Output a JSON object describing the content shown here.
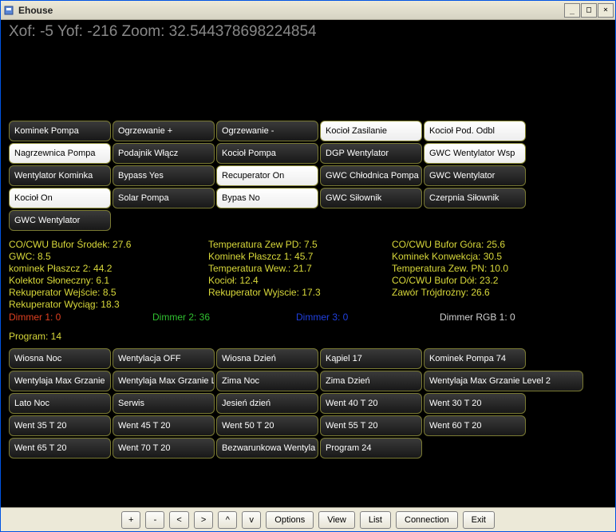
{
  "window": {
    "title": "Ehouse"
  },
  "coords": {
    "text": "Xof: -5 Yof: -216 Zoom: 32.544378698224854"
  },
  "colors": {
    "window_bg": "#ece9d8",
    "content_bg": "#000000",
    "cell_border": "#7a7a33",
    "cell_off_bg_top": "#3a3a3a",
    "cell_off_bg_bottom": "#181818",
    "cell_on_bg": "#ffffff",
    "sensor_text": "#d8d83a",
    "coords_text": "#888888"
  },
  "topButtons": [
    {
      "label": "Kominek Pompa",
      "on": false
    },
    {
      "label": "Ogrzewanie +",
      "on": false
    },
    {
      "label": "Ogrzewanie -",
      "on": false
    },
    {
      "label": "Kocioł Zasilanie",
      "on": true
    },
    {
      "label": "Kocioł Pod. Odbl",
      "on": true
    },
    {
      "label": "Nagrzewnica Pompa",
      "on": true
    },
    {
      "label": "Podajnik Włącz",
      "on": false
    },
    {
      "label": "Kocioł Pompa",
      "on": false
    },
    {
      "label": "DGP Wentylator",
      "on": false
    },
    {
      "label": "GWC Wentylator Wsp",
      "on": true
    },
    {
      "label": "Wentylator Kominka",
      "on": false
    },
    {
      "label": "Bypass Yes",
      "on": false
    },
    {
      "label": "Recuperator On",
      "on": true
    },
    {
      "label": "GWC Chłodnica Pompa",
      "on": false
    },
    {
      "label": "GWC Wentylator",
      "on": false
    },
    {
      "label": "Kocioł On",
      "on": true
    },
    {
      "label": "Solar Pompa",
      "on": false
    },
    {
      "label": "Bypas No",
      "on": true
    },
    {
      "label": "GWC Siłownik",
      "on": false
    },
    {
      "label": "Czerpnia Siłownik",
      "on": false
    },
    {
      "label": "GWC Wentylator",
      "on": false
    }
  ],
  "sensors": {
    "col1": [
      "CO/CWU Bufor Środek: 27.6",
      "GWC: 8.5",
      "kominek Płaszcz 2: 44.2",
      "Kolektor Słoneczny: 6.1",
      "Rekuperator Wejście: 8.5",
      "Rekuperator Wyciąg: 18.3"
    ],
    "col2": [
      "Temperatura Zew PD: 7.5",
      "Kominek Płaszcz 1: 45.7",
      "Temperatura Wew.: 21.7",
      "Kocioł: 12.4",
      "Rekuperator Wyjscie: 17.3"
    ],
    "col3": [
      "CO/CWU Bufor Góra: 25.6",
      "Kominek Konwekcja: 30.5",
      "Temperatura Zew. PN: 10.0",
      "CO/CWU Bufor Dół: 23.2",
      "Zawór Trójdrożny: 26.6"
    ]
  },
  "dimmers": {
    "d1": "Dimmer 1: 0",
    "d2": "Dimmer 2: 36",
    "d3": "Dimmer 3: 0",
    "d4": "Dimmer RGB 1: 0"
  },
  "program": "Program: 14",
  "bottomButtons": [
    {
      "label": "Wiosna Noc"
    },
    {
      "label": "Wentylacja OFF"
    },
    {
      "label": "Wiosna Dzień"
    },
    {
      "label": "Kąpiel 17"
    },
    {
      "label": "Kominek Pompa 74"
    },
    {
      "label": "Wentylaja Max Grzanie"
    },
    {
      "label": "Wentylaja Max Grzanie L"
    },
    {
      "label": "Zima Noc"
    },
    {
      "label": "Zima Dzień"
    },
    {
      "label": "Wentylaja Max Grzanie Level 2",
      "wide": true
    },
    {
      "label": "Lato Noc"
    },
    {
      "label": "Serwis"
    },
    {
      "label": "Jesień dzień"
    },
    {
      "label": "Went 40 T 20"
    },
    {
      "label": "Went 30 T 20"
    },
    {
      "label": "Went 35 T 20"
    },
    {
      "label": "Went 45 T 20"
    },
    {
      "label": "Went 50 T 20"
    },
    {
      "label": "Went 55 T 20"
    },
    {
      "label": "Went 60 T 20"
    },
    {
      "label": "Went 65 T 20"
    },
    {
      "label": "Went 70 T 20"
    },
    {
      "label": "Bezwarunkowa Wentyla"
    },
    {
      "label": "Program 24"
    }
  ],
  "footer": {
    "plus": "+",
    "minus": "-",
    "lt": "<",
    "gt": ">",
    "up": "^",
    "down": "v",
    "options": "Options",
    "view": "View",
    "list": "List",
    "connection": "Connection",
    "exit": "Exit"
  }
}
